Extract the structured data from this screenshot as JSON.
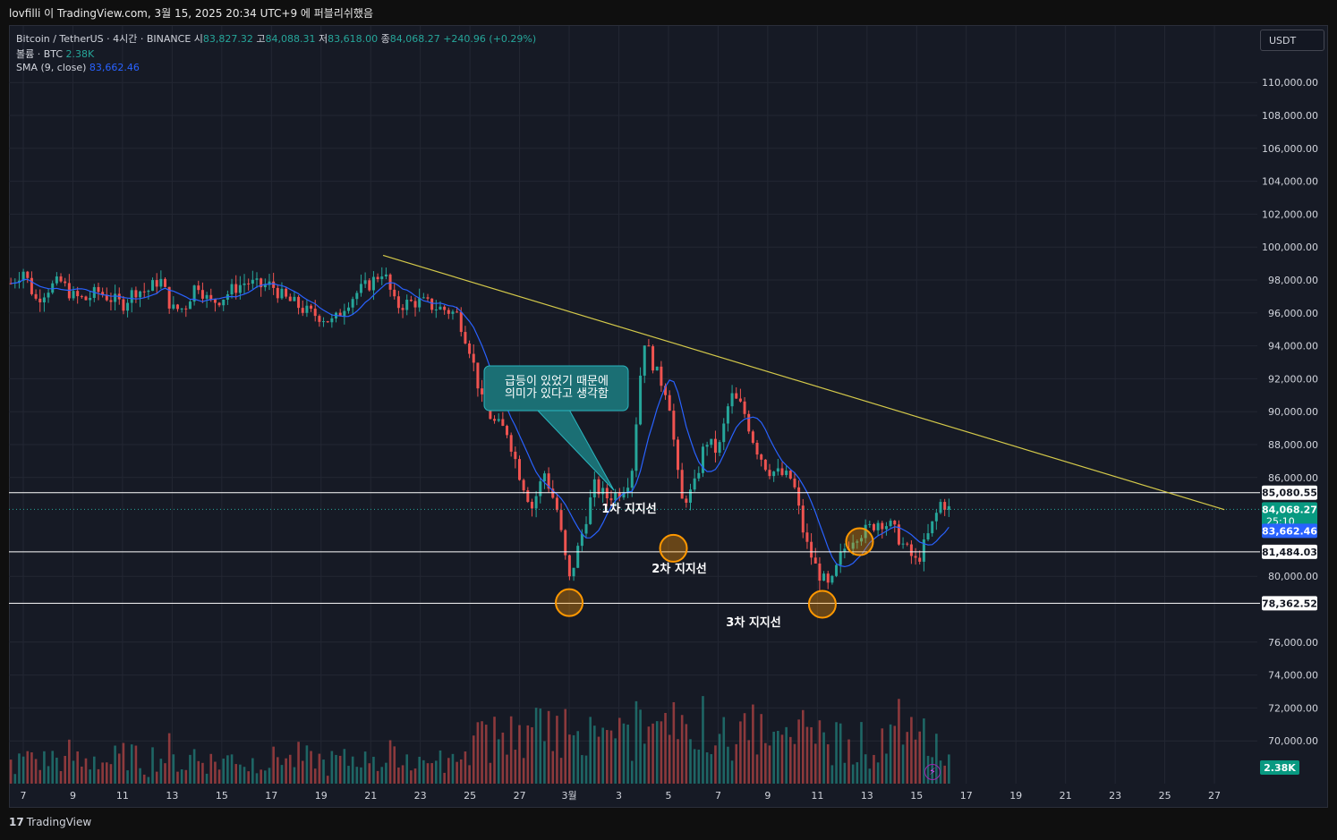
{
  "header": {
    "publish_line": "lovfilli 이 TradingView.com, 3월 15, 2025 20:34 UTC+9 에 퍼블리쉬했음"
  },
  "legend": {
    "symbol": "Bitcoin / TetherUS · 4시간 · BINANCE",
    "open_label": "시",
    "open": "83,827.32",
    "high_label": "고",
    "high": "84,088.31",
    "low_label": "저",
    "low": "83,618.00",
    "close_label": "종",
    "close": "84,068.27",
    "change": "+240.96 (+0.29%)",
    "volume_label": "볼륨 · BTC",
    "volume": "2.38K",
    "sma_label": "SMA (9, close)",
    "sma": "83,662.46"
  },
  "toolbar": {
    "currency": "USDT"
  },
  "footer": {
    "brand": "TradingView"
  },
  "colors": {
    "up": "#26a69a",
    "down": "#ef5350",
    "sma": "#2962ff",
    "trendline": "#d4c94a",
    "callout": "#1b6f74",
    "circle": "#ff9800",
    "background": "#161a25",
    "grid": "#232733"
  },
  "chart_data": {
    "type": "candlestick",
    "title": "Bitcoin / TetherUS · 4시간 · BINANCE",
    "y_axis": {
      "ticks": [
        "110,000.00",
        "108,000.00",
        "106,000.00",
        "104,000.00",
        "102,000.00",
        "100,000.00",
        "98,000.00",
        "96,000.00",
        "94,000.00",
        "92,000.00",
        "90,000.00",
        "88,000.00",
        "86,000.00",
        "80,000.00",
        "76,000.00",
        "74,000.00",
        "72,000.00",
        "70,000.00"
      ],
      "tick_values": [
        110000,
        108000,
        106000,
        104000,
        102000,
        100000,
        98000,
        96000,
        94000,
        92000,
        90000,
        88000,
        86000,
        80000,
        76000,
        74000,
        72000,
        70000
      ],
      "range": [
        69000,
        112000
      ]
    },
    "x_axis": {
      "ticks": [
        "7",
        "9",
        "11",
        "13",
        "15",
        "17",
        "19",
        "21",
        "23",
        "25",
        "27",
        "3월",
        "3",
        "5",
        "7",
        "9",
        "11",
        "13",
        "15",
        "17",
        "19",
        "21",
        "23",
        "25",
        "27"
      ],
      "tick_days": [
        7,
        9,
        11,
        13,
        15,
        17,
        19,
        21,
        23,
        25,
        27,
        29,
        31,
        33,
        35,
        37,
        39,
        41,
        43,
        45,
        47,
        49,
        51,
        53,
        55
      ],
      "day_range": [
        6.5,
        57.2
      ]
    },
    "price_path": [
      [
        6.5,
        97800
      ],
      [
        7,
        98600
      ],
      [
        7.5,
        96800
      ],
      [
        8,
        97500
      ],
      [
        8.5,
        97900
      ],
      [
        9,
        97000
      ],
      [
        9.5,
        96800
      ],
      [
        10,
        97300
      ],
      [
        10.5,
        96900
      ],
      [
        11,
        96500
      ],
      [
        11.5,
        97400
      ],
      [
        12,
        97300
      ],
      [
        12.5,
        98100
      ],
      [
        13,
        96200
      ],
      [
        13.5,
        96300
      ],
      [
        14,
        97900
      ],
      [
        14.5,
        96600
      ],
      [
        15,
        96900
      ],
      [
        15.5,
        97500
      ],
      [
        16,
        97900
      ],
      [
        16.5,
        97600
      ],
      [
        17,
        97700
      ],
      [
        17.5,
        96900
      ],
      [
        18,
        96500
      ],
      [
        18.5,
        96000
      ],
      [
        19,
        95800
      ],
      [
        19.5,
        95400
      ],
      [
        20,
        96600
      ],
      [
        20.5,
        97300
      ],
      [
        21,
        97800
      ],
      [
        21.5,
        98600
      ],
      [
        22,
        96400
      ],
      [
        22.5,
        96600
      ],
      [
        23,
        96700
      ],
      [
        23.5,
        96400
      ],
      [
        24,
        96200
      ],
      [
        24.5,
        95900
      ],
      [
        25,
        93800
      ],
      [
        25.5,
        90500
      ],
      [
        26,
        89300
      ],
      [
        26.5,
        88800
      ],
      [
        27,
        86200
      ],
      [
        27.5,
        84200
      ],
      [
        28,
        86300
      ],
      [
        28.5,
        84100
      ],
      [
        29,
        79700
      ],
      [
        29.5,
        82500
      ],
      [
        30,
        85500
      ],
      [
        30.5,
        84800
      ],
      [
        31,
        85100
      ],
      [
        31.5,
        86100
      ],
      [
        32,
        94500
      ],
      [
        32.5,
        92400
      ],
      [
        33,
        91000
      ],
      [
        33.5,
        84500
      ],
      [
        34,
        85200
      ],
      [
        34.5,
        88300
      ],
      [
        35,
        87500
      ],
      [
        35.5,
        91000
      ],
      [
        36,
        90200
      ],
      [
        36.5,
        87900
      ],
      [
        37,
        86500
      ],
      [
        37.5,
        86200
      ],
      [
        38,
        85900
      ],
      [
        38.5,
        82200
      ],
      [
        39,
        80300
      ],
      [
        39.5,
        79200
      ],
      [
        40,
        81500
      ],
      [
        40.5,
        82500
      ],
      [
        41,
        82800
      ],
      [
        41.5,
        83400
      ],
      [
        42,
        83000
      ],
      [
        42.5,
        81800
      ],
      [
        43,
        80800
      ],
      [
        43.5,
        82600
      ],
      [
        44,
        84600
      ],
      [
        44.3,
        84068
      ]
    ],
    "sma": {
      "name": "SMA (9, close)",
      "last": 83662.46
    },
    "volume": {
      "name": "볼륨 · BTC",
      "last": "2.38K"
    },
    "price_tags": {
      "resistance": "85,080.55",
      "current": "84,068.27",
      "countdown": "25:10",
      "sma": "83,662.46",
      "support2": "81,484.03",
      "support3": "78,362.52",
      "volume": "2.38K"
    },
    "horizontal_lines": [
      85080.55,
      81484.03,
      78362.52
    ],
    "trendline": {
      "from": [
        21.5,
        99500
      ],
      "to": [
        55.4,
        84050
      ]
    },
    "annotations": {
      "callout": "급등이 있었기 때문에\n의미가 있다고 생각함",
      "support1": "1차 지지선",
      "support2": "2차 지지선",
      "support3": "3차 지지선"
    },
    "circles": [
      [
        29,
        78400
      ],
      [
        33.2,
        81700
      ],
      [
        39.2,
        78300
      ],
      [
        40.7,
        82100
      ]
    ],
    "grid": true,
    "legend_position": "top-left"
  }
}
